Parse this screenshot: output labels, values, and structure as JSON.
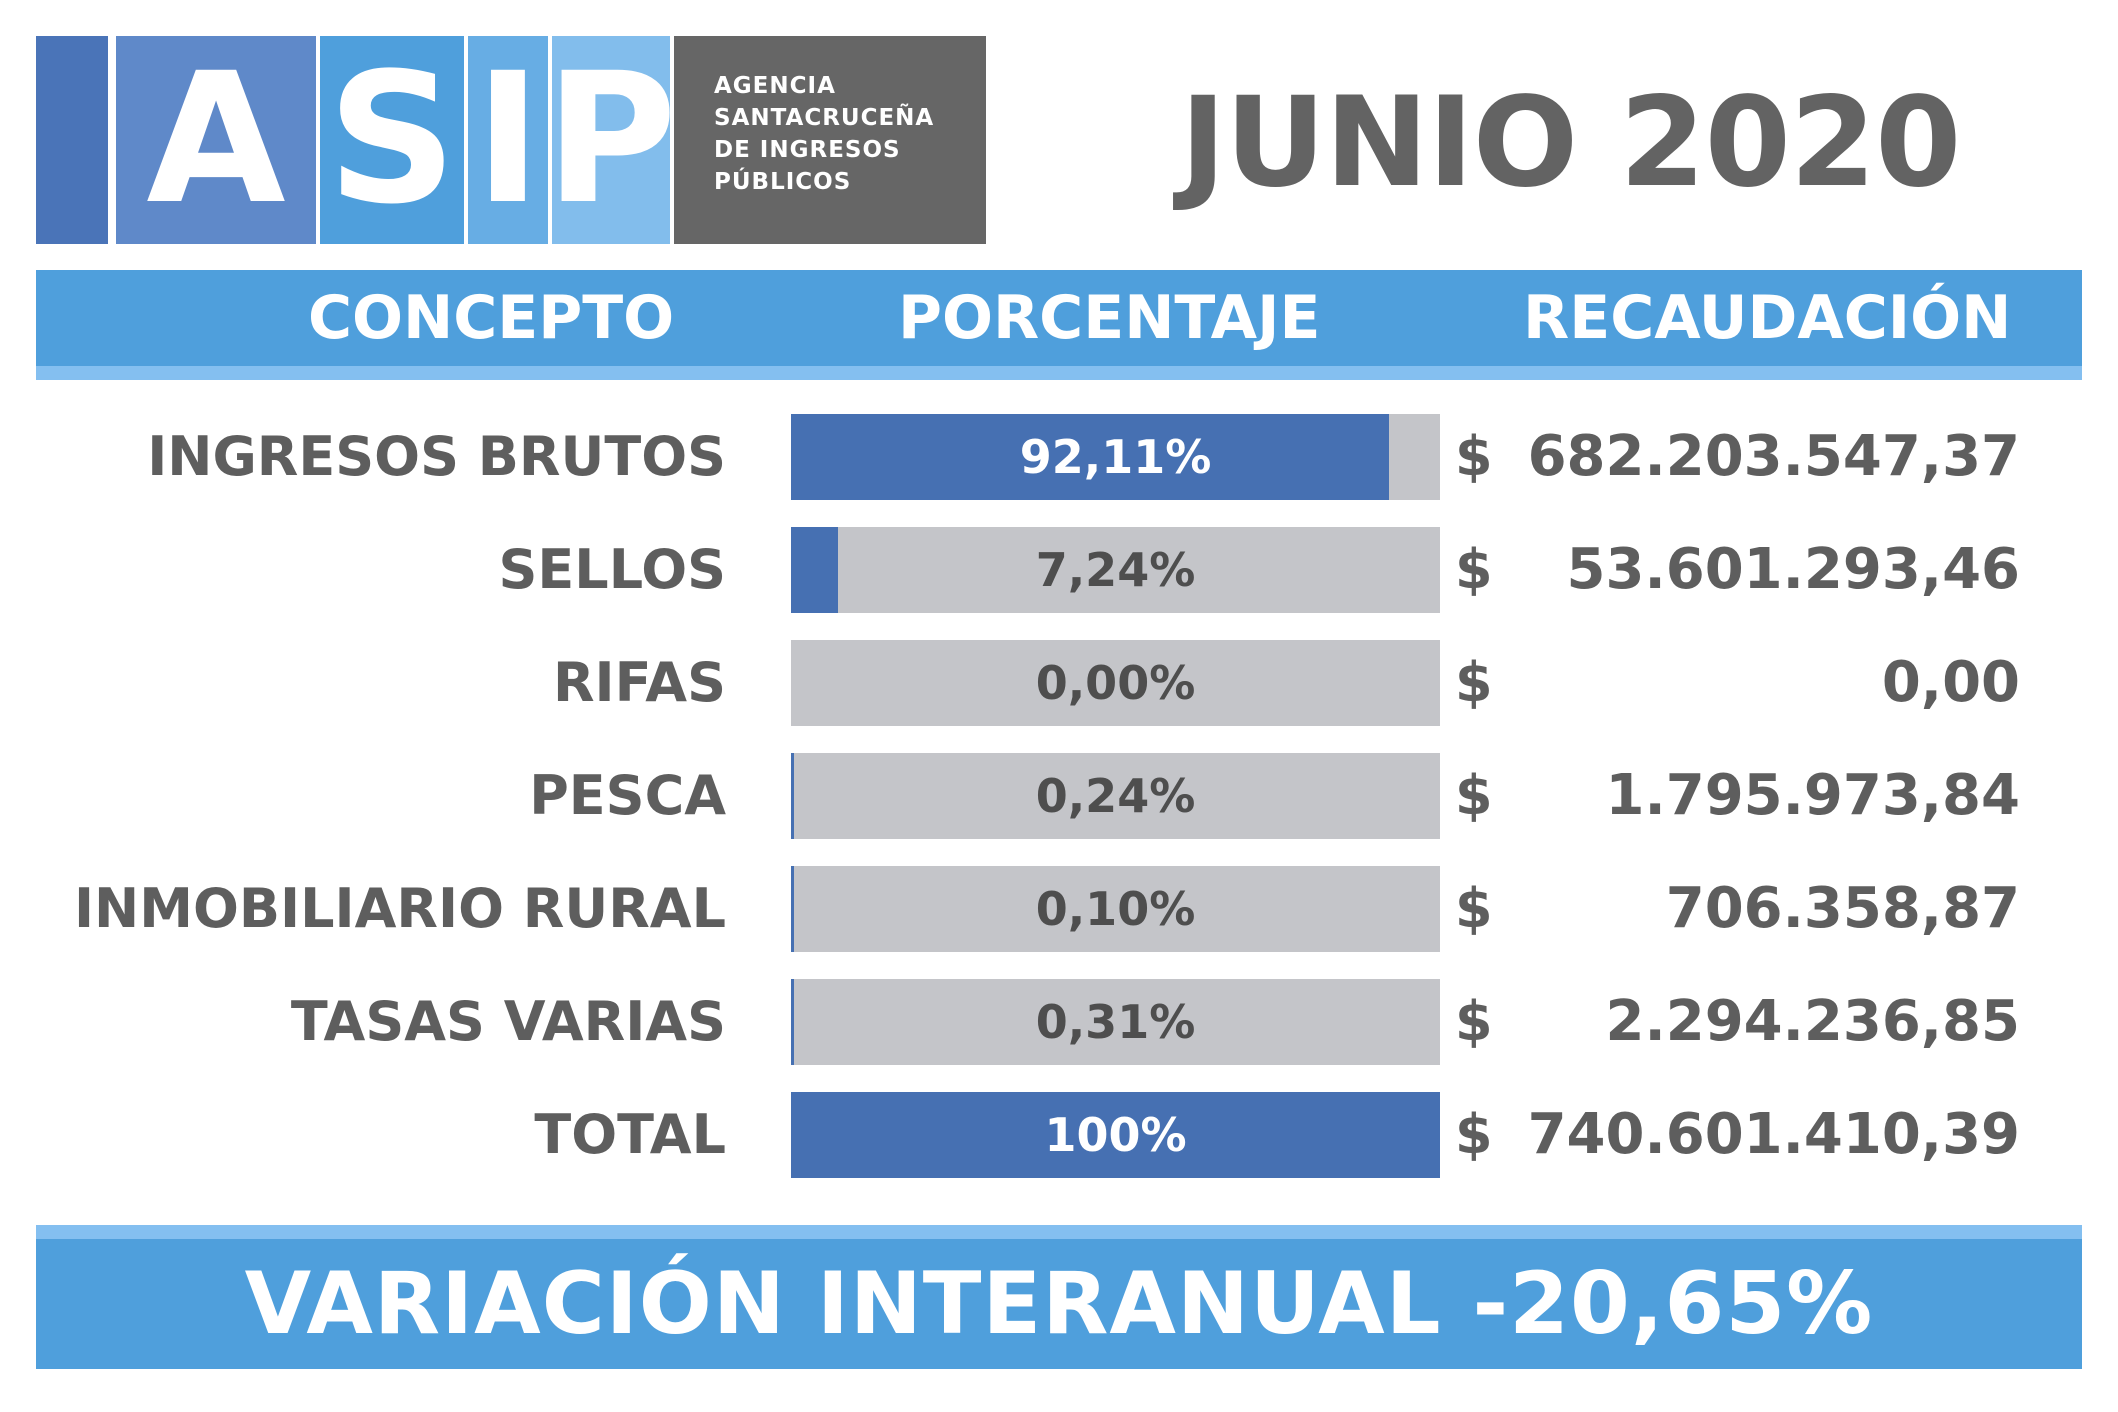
{
  "logo": {
    "letters": [
      "A",
      "S",
      "I",
      "P"
    ],
    "agency_lines": [
      "AGENCIA",
      "SANTACRUCEÑA",
      "DE INGRESOS",
      "PÚBLICOS"
    ],
    "colors": [
      "#4a74b8",
      "#5f89c9",
      "#4f9fdc",
      "#67ade4",
      "#82bdec",
      "#666666"
    ]
  },
  "title": "JUNIO 2020",
  "header": {
    "concepto": "CONCEPTO",
    "porcentaje": "PORCENTAJE",
    "recaudacion": "RECAUDACIÓN"
  },
  "currency_symbol": "$",
  "chart_data": {
    "type": "bar",
    "title": "JUNIO 2020",
    "xlabel": "",
    "ylabel": "",
    "ylim": [
      0,
      100
    ],
    "categories": [
      "INGRESOS BRUTOS",
      "SELLOS",
      "RIFAS",
      "PESCA",
      "INMOBILIARIO RURAL",
      "TASAS VARIAS",
      "TOTAL"
    ],
    "values": [
      92.11,
      7.24,
      0.0,
      0.24,
      0.1,
      0.31,
      100
    ],
    "value_labels": [
      "92,11%",
      "7,24%",
      "0,00%",
      "0,24%",
      "0,10%",
      "0,31%",
      "100%"
    ],
    "amounts": [
      "682.203.547,37",
      "53.601.293,46",
      "0,00",
      "1.795.973,84",
      "706.358,87",
      "2.294.236,85",
      "740.601.410,39"
    ],
    "colors": {
      "fill": "#4670b2",
      "track": "#c4c5c9"
    }
  },
  "footer": "VARIACIÓN INTERANUAL -20,65%"
}
